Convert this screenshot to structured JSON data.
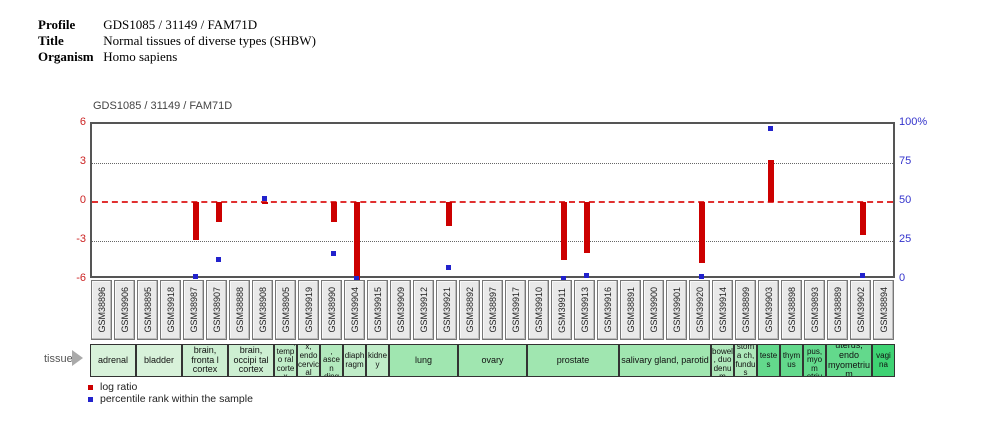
{
  "header": {
    "profile_label": "Profile",
    "profile_value": "GDS1085 / 31149 / FAM71D",
    "title_label": "Title",
    "title_value": "Normal tissues of diverse types (SHBW)",
    "organism_label": "Organism",
    "organism_value": "Homo sapiens"
  },
  "tissue_row_label": "tissue",
  "legend": {
    "items": [
      {
        "name": "log-ratio",
        "label": "log ratio",
        "color": "#cc0000"
      },
      {
        "name": "percentile-rank",
        "label": "percentile rank within the sample",
        "color": "#2222cc"
      }
    ]
  },
  "chart_data": {
    "type": "bar",
    "title": "GDS1085 / 31149 / FAM71D",
    "left_axis": {
      "labels": [
        "6",
        "3",
        "0",
        "-3",
        "-6"
      ],
      "color": "#cc2222",
      "range": [
        -6,
        6
      ]
    },
    "right_axis": {
      "labels": [
        "100%",
        "75",
        "50",
        "25",
        "0"
      ],
      "color": "#3333cc",
      "range": [
        0,
        100
      ]
    },
    "zero_line_color": "#e03030",
    "bar_color": "#cc0000",
    "marker_color": "#2222cc",
    "samples": [
      "GSM38896",
      "GSM39906",
      "GSM38895",
      "GSM39918",
      "GSM38987",
      "GSM38907",
      "GSM38888",
      "GSM38908",
      "GSM38905",
      "GSM39919",
      "GSM38990",
      "GSM39904",
      "GSM39915",
      "GSM39909",
      "GSM39912",
      "GSM39921",
      "GSM38892",
      "GSM38897",
      "GSM39917",
      "GSM39910",
      "GSM39911",
      "GSM39913",
      "GSM39916",
      "GSM38891",
      "GSM39900",
      "GSM39901",
      "GSM39920",
      "GSM39914",
      "GSM38899",
      "GSM39903",
      "GSM38898",
      "GSM39893",
      "GSM38889",
      "GSM39902",
      "GSM38894"
    ],
    "log_ratio": [
      null,
      null,
      null,
      null,
      -2.9,
      -1.55,
      null,
      -0.15,
      null,
      null,
      -1.5,
      -6.0,
      null,
      null,
      null,
      -1.85,
      null,
      null,
      null,
      null,
      -4.45,
      -3.9,
      null,
      null,
      null,
      null,
      -4.7,
      null,
      null,
      3.25,
      null,
      null,
      null,
      -2.5,
      null
    ],
    "percentile_rank": [
      null,
      null,
      null,
      null,
      2,
      13,
      null,
      52,
      null,
      null,
      17,
      1,
      null,
      null,
      null,
      8,
      null,
      null,
      null,
      null,
      1,
      3,
      null,
      null,
      null,
      null,
      2,
      null,
      null,
      97,
      null,
      null,
      null,
      3,
      null
    ],
    "tissue_groups": [
      {
        "label": "adrenal",
        "span": 2,
        "color": "#d8f2da"
      },
      {
        "label": "bladder",
        "span": 2,
        "color": "#d8f2da"
      },
      {
        "label": "brain, fronta l cortex",
        "span": 2,
        "color": "#cdefd2"
      },
      {
        "label": "brain, occipi tal cortex",
        "span": 2,
        "color": "#cdefd2"
      },
      {
        "label": "brain, tempo ral cortex",
        "span": 1,
        "color": "#c0ecc8"
      },
      {
        "label": "cervi x, endo cervic al cana",
        "span": 1,
        "color": "#c0ecc8"
      },
      {
        "label": "colon, ascen ding",
        "span": 1,
        "color": "#b2e9bd"
      },
      {
        "label": "diaph ragm",
        "span": 1,
        "color": "#c0ecc8"
      },
      {
        "label": "kidne y",
        "span": 1,
        "color": "#c0ecc8"
      },
      {
        "label": "lung",
        "span": 3,
        "color": "#a0e6b0"
      },
      {
        "label": "ovary",
        "span": 3,
        "color": "#a0e6b0"
      },
      {
        "label": "prostate",
        "span": 4,
        "color": "#a0e6b0"
      },
      {
        "label": "salivary gland, parotid",
        "span": 4,
        "color": "#a0e6b0"
      },
      {
        "label": "small bowel, duo denum",
        "span": 1,
        "color": "#aee8ba"
      },
      {
        "label": "stoma ch, fundus",
        "span": 1,
        "color": "#aee8ba"
      },
      {
        "label": "teste s",
        "span": 1,
        "color": "#63d98c"
      },
      {
        "label": "thym us",
        "span": 1,
        "color": "#63d98c"
      },
      {
        "label": "uterin e cor pus, myom etrium",
        "span": 1,
        "color": "#63d98c"
      },
      {
        "label": "uterus, endo myometrium",
        "span": 2,
        "color": "#63d98c"
      },
      {
        "label": "vagi na",
        "span": 1,
        "color": "#3ed273"
      }
    ]
  }
}
